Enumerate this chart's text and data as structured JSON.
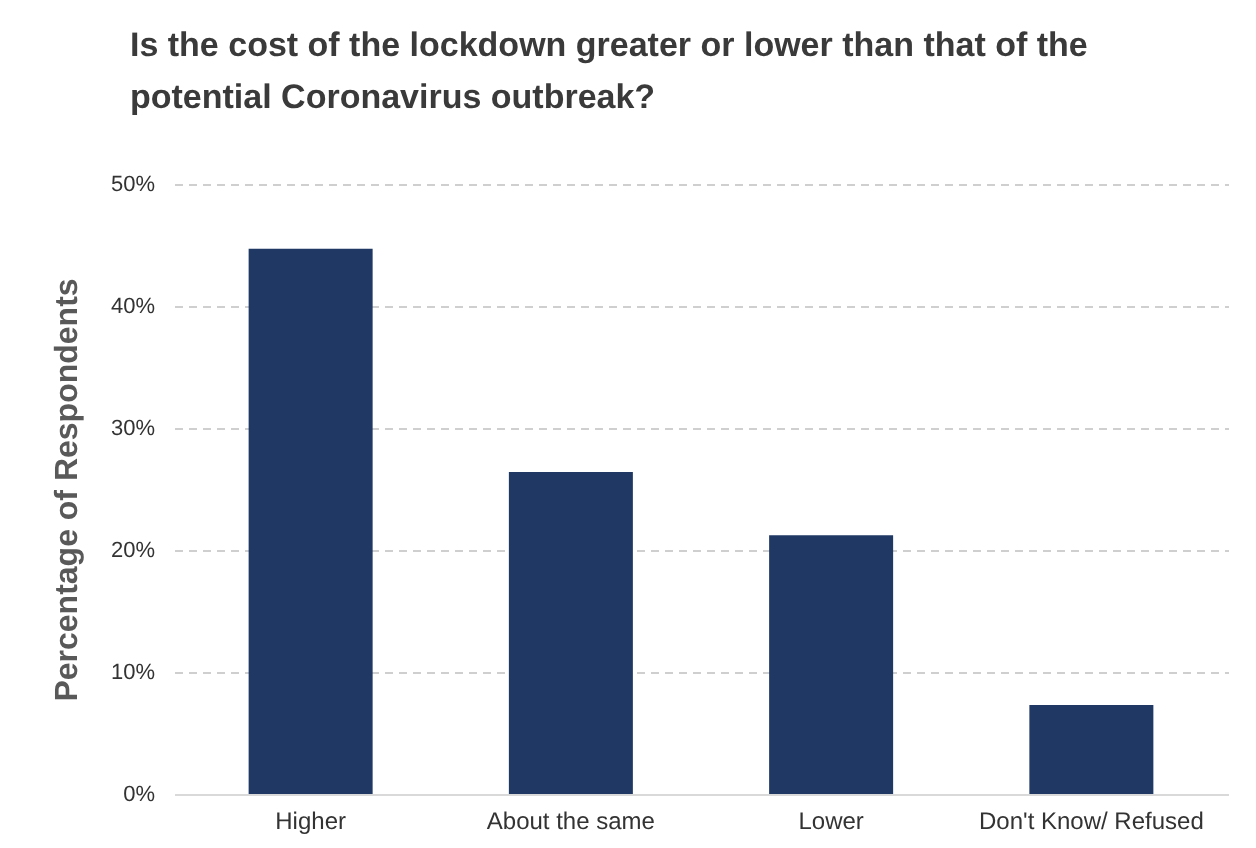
{
  "chart_data": {
    "type": "bar",
    "title": "Is the cost of the lockdown greater or lower than that of the potential Coronavirus outbreak?",
    "ylabel": "Percentage of Respondents",
    "categories": [
      "Higher",
      "About the same",
      "Lower",
      "Don't Know/ Refused"
    ],
    "values": [
      44.7,
      26.4,
      21.2,
      7.3
    ],
    "color": "#1f3864",
    "ylim": [
      0,
      50
    ],
    "yticks": [
      {
        "value": 0,
        "label": "0%"
      },
      {
        "value": 10,
        "label": "10%"
      },
      {
        "value": 20,
        "label": "20%"
      },
      {
        "value": 30,
        "label": "30%"
      },
      {
        "value": 40,
        "label": "40%"
      },
      {
        "value": 50,
        "label": "50%"
      }
    ],
    "grid": "y"
  }
}
